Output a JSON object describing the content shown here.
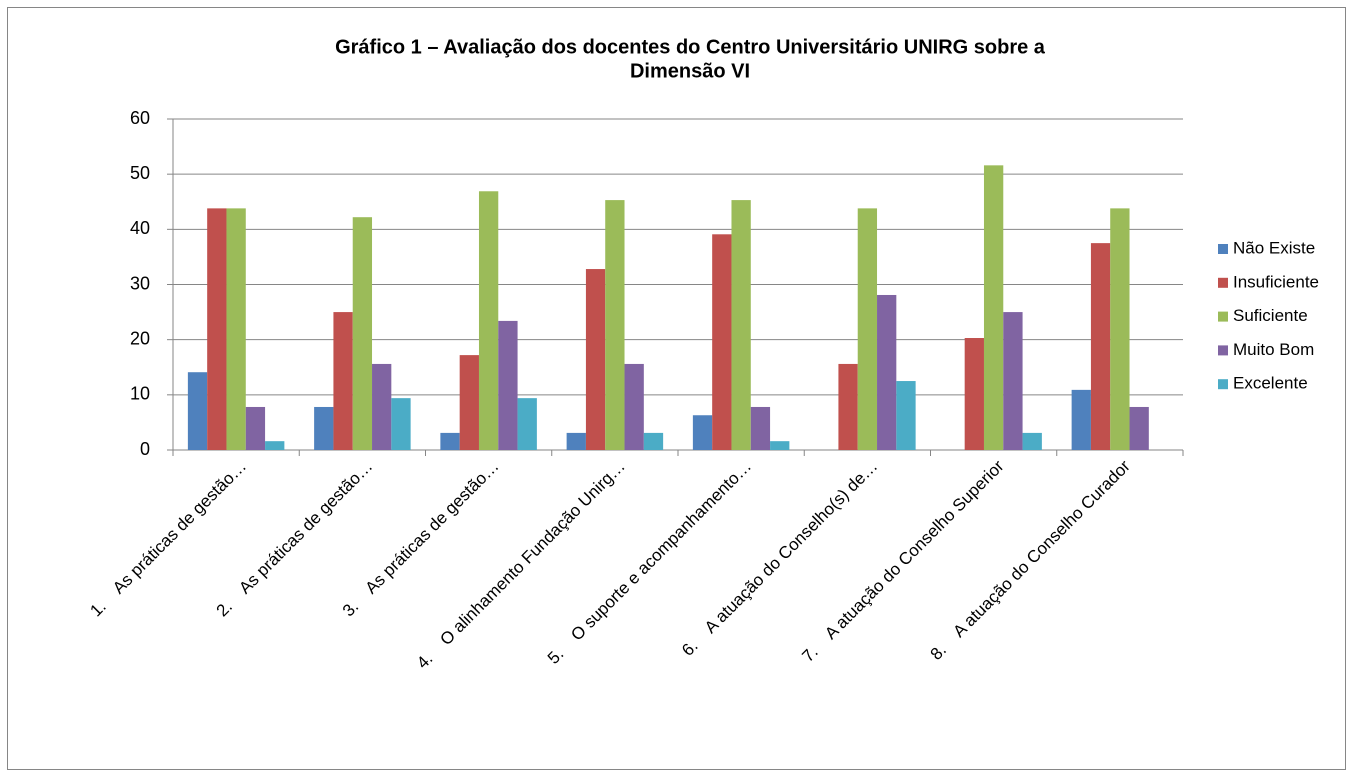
{
  "chart_data": {
    "type": "bar",
    "title": [
      "Gráfico 1 – Avaliação dos docentes do  Centro Universitário UNIRG sobre a",
      "Dimensão VI"
    ],
    "categories": [
      "1.    As práticas de gestão…",
      "2.    As práticas de gestão…",
      "3.    As práticas de gestão…",
      "4.    O alinhamento Fundação Unirg…",
      "5.    O suporte e acompanhamento…",
      "6.    A atuação do Conselho(s) de…",
      "7.    A atuação do Conselho Superior",
      "8.    A atuação do Conselho Curador"
    ],
    "series": [
      {
        "name": "Não Existe",
        "color": "#4f81bd",
        "values": [
          14.1,
          7.8,
          3.1,
          3.1,
          6.3,
          0,
          0,
          10.9
        ]
      },
      {
        "name": "Insuficiente",
        "color": "#c0504d",
        "values": [
          43.8,
          25,
          17.2,
          32.8,
          39.1,
          15.6,
          20.3,
          37.5
        ]
      },
      {
        "name": "Suficiente",
        "color": "#9bbb59",
        "values": [
          43.8,
          42.2,
          46.9,
          45.3,
          45.3,
          43.8,
          51.6,
          43.8
        ]
      },
      {
        "name": "Muito Bom",
        "color": "#8064a2",
        "values": [
          7.8,
          15.6,
          23.4,
          15.6,
          7.8,
          28.1,
          25,
          7.8
        ]
      },
      {
        "name": "Excelente",
        "color": "#4bacc6",
        "values": [
          1.6,
          9.4,
          9.4,
          3.1,
          1.6,
          12.5,
          3.1,
          0
        ]
      }
    ],
    "ylim": [
      0,
      60
    ],
    "yticks": [
      0,
      10,
      20,
      30,
      40,
      50,
      60
    ],
    "grid": true,
    "legend": "right"
  }
}
